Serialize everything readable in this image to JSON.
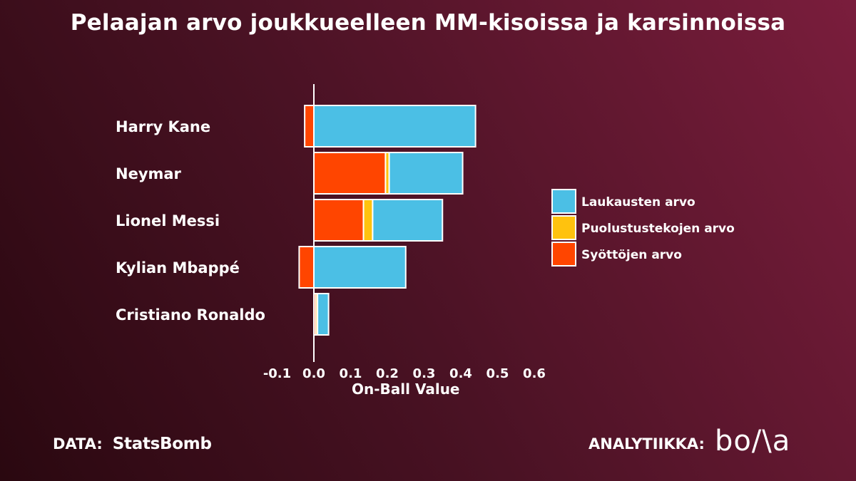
{
  "chart_data": {
    "type": "bar",
    "orientation": "horizontal",
    "stacked": true,
    "title": "Pelaajan arvo joukkueelleen MM-kisoissa ja karsinnoissa",
    "xlabel": "On-Ball Value",
    "ylabel": "",
    "xlim": [
      -0.1,
      0.6
    ],
    "xticks": [
      -0.1,
      0.0,
      0.1,
      0.2,
      0.3,
      0.4,
      0.5,
      0.6
    ],
    "xtick_labels": [
      "-0.1",
      "0.0",
      "0.1",
      "0.2",
      "0.3",
      "0.4",
      "0.5",
      "0.6"
    ],
    "grid": false,
    "legend_position": "right",
    "categories": [
      "Harry Kane",
      "Neymar",
      "Lionel Messi",
      "Kylian Mbappé",
      "Cristiano Ronaldo"
    ],
    "series": [
      {
        "name": "Syöttöjen arvo",
        "color": "#ff4500",
        "values": [
          -0.025,
          0.195,
          0.135,
          -0.04,
          0.005
        ]
      },
      {
        "name": "Puolustustekojen arvo",
        "color": "#ffc20e",
        "values": [
          0.0,
          0.01,
          0.025,
          0.0,
          0.005
        ]
      },
      {
        "name": "Laukausten arvo",
        "color": "#4bbfe5",
        "values": [
          0.44,
          0.2,
          0.19,
          0.25,
          0.03
        ]
      }
    ],
    "legend_order": [
      "Laukausten arvo",
      "Puolustustekojen arvo",
      "Syöttöjen arvo"
    ]
  },
  "footer": {
    "data_label": "DATA:",
    "data_source": "StatsBomb",
    "analytics_label": "ANALYTIIKKA:",
    "analytics_logo": "bo/\\a"
  }
}
